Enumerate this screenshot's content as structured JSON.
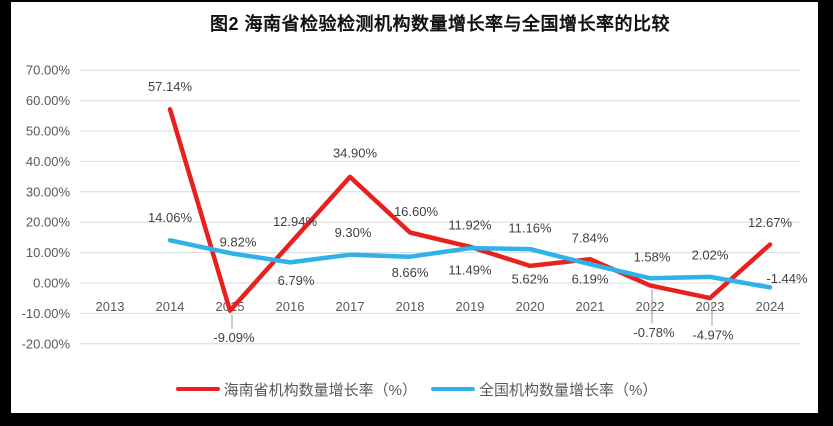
{
  "frame": {
    "border_color": "#000000",
    "paper_color": "#ffffff"
  },
  "chart_data": {
    "type": "line",
    "title": "图2 海南省检验检测机构数量增长率与全国增长率的比较",
    "categories": [
      "2013",
      "2014",
      "2015",
      "2016",
      "2017",
      "2018",
      "2019",
      "2020",
      "2021",
      "2022",
      "2023",
      "2024"
    ],
    "series": [
      {
        "name": "海南省机构数量增长率（%）",
        "color": "#e8201e",
        "values": [
          null,
          57.14,
          -9.09,
          12.94,
          34.9,
          16.6,
          11.92,
          5.62,
          7.84,
          -0.78,
          -4.97,
          12.67
        ]
      },
      {
        "name": "全国机构数量增长率（%）",
        "color": "#2fb3e6",
        "values": [
          null,
          14.06,
          9.82,
          6.79,
          9.3,
          8.66,
          11.49,
          11.16,
          6.19,
          1.58,
          2.02,
          -1.44
        ]
      }
    ],
    "y_axis": {
      "min": -20,
      "max": 70,
      "step": 10,
      "tick_labels": [
        "70.00%",
        "60.00%",
        "50.00%",
        "40.00%",
        "30.00%",
        "20.00%",
        "10.00%",
        "0.00%",
        "-10.00%",
        "-20.00%"
      ]
    },
    "data_labels": true,
    "grid": true,
    "legend_position": "bottom",
    "colors": {
      "gridline": "#d9d9d9",
      "axis_text": "#595959",
      "data_label_text": "#404040",
      "leader_line": "#9a9a9a"
    }
  }
}
